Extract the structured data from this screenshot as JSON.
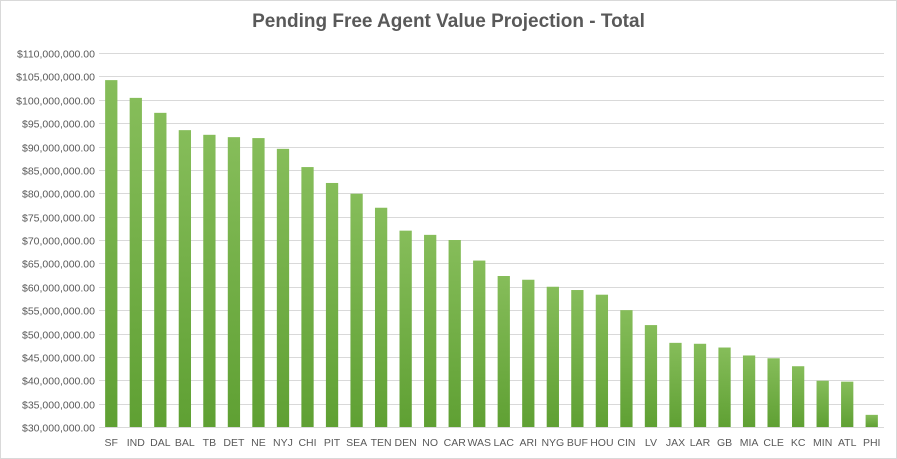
{
  "chart_data": {
    "type": "bar",
    "title": "Pending Free Agent Value Projection  - Total",
    "xlabel": "",
    "ylabel": "",
    "ylim": [
      30000000,
      110000000
    ],
    "y_ticks": [
      "$30,000,000.00",
      "$35,000,000.00",
      "$40,000,000.00",
      "$45,000,000.00",
      "$50,000,000.00",
      "$55,000,000.00",
      "$60,000,000.00",
      "$65,000,000.00",
      "$70,000,000.00",
      "$75,000,000.00",
      "$80,000,000.00",
      "$85,000,000.00",
      "$90,000,000.00",
      "$95,000,000.00",
      "$100,000,000.00",
      "$105,000,000.00",
      "$110,000,000.00"
    ],
    "grid": true,
    "legend": "none",
    "bar_color_top": "#86bd5a",
    "bar_color_bottom": "#5fa033",
    "categories": [
      "SF",
      "IND",
      "DAL",
      "BAL",
      "TB",
      "DET",
      "NE",
      "NYJ",
      "CHI",
      "PIT",
      "SEA",
      "TEN",
      "DEN",
      "NO",
      "CAR",
      "WAS",
      "LAC",
      "ARI",
      "NYG",
      "BUF",
      "HOU",
      "CIN",
      "LV",
      "JAX",
      "LAR",
      "GB",
      "MIA",
      "CLE",
      "KC",
      "MIN",
      "ATL",
      "PHI"
    ],
    "values": [
      104200000,
      100400000,
      97200000,
      93500000,
      92500000,
      92000000,
      91800000,
      89500000,
      85600000,
      82200000,
      79900000,
      76900000,
      72000000,
      71100000,
      70000000,
      65600000,
      62300000,
      61500000,
      60000000,
      59300000,
      58300000,
      55000000,
      51800000,
      48000000,
      47800000,
      47000000,
      45300000,
      44700000,
      43000000,
      39900000,
      39700000,
      32600000
    ]
  }
}
